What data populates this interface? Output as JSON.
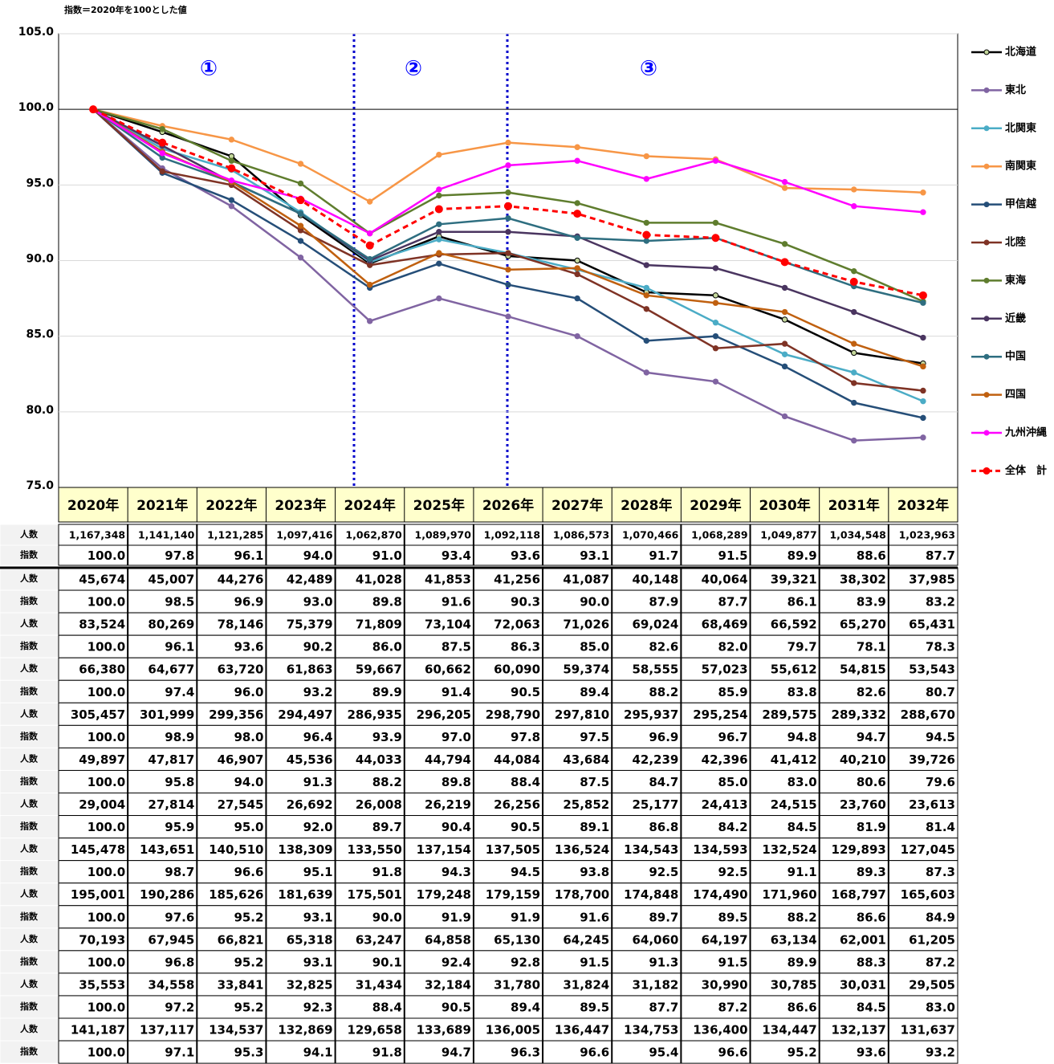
{
  "chart_data": {
    "type": "line",
    "subtitle": "指数＝2020年を100とした値",
    "categories": [
      "2020年",
      "2021年",
      "2022年",
      "2023年",
      "2024年",
      "2025年",
      "2026年",
      "2027年",
      "2028年",
      "2029年",
      "2030年",
      "2031年",
      "2032年"
    ],
    "ylim": [
      75,
      105
    ],
    "yticks": [
      {
        "value": 75,
        "label": "75.0"
      },
      {
        "value": 80,
        "label": "80.0"
      },
      {
        "value": 85,
        "label": "85.0"
      },
      {
        "value": 90,
        "label": "90.0"
      },
      {
        "value": 95,
        "label": "95.0"
      },
      {
        "value": 100,
        "label": "100.0"
      },
      {
        "value": 105,
        "label": "105.0"
      }
    ],
    "grid": true,
    "reference_line": 100,
    "legend": "right",
    "annotations": [
      "①",
      "②",
      "③"
    ],
    "series": [
      {
        "name": "北海道",
        "color": "#000000",
        "marker_color": "#c4d79b",
        "values": [
          100,
          98.5,
          96.9,
          93.0,
          89.8,
          91.6,
          90.3,
          90.0,
          87.9,
          87.7,
          86.1,
          83.9,
          83.2
        ],
        "value_labels": [
          "100.0",
          "98.5",
          "96.9",
          "93.0",
          "89.8",
          "91.6",
          "90.3",
          "90.0",
          "87.9",
          "87.7",
          "86.1",
          "83.9",
          "83.2"
        ]
      },
      {
        "name": "東北",
        "color": "#8064a2",
        "values": [
          100,
          96.1,
          93.6,
          90.2,
          86.0,
          87.5,
          86.3,
          85.0,
          82.6,
          82.0,
          79.7,
          78.1,
          78.3
        ],
        "value_labels": [
          "100.0",
          "96.1",
          "93.6",
          "90.2",
          "86.0",
          "87.5",
          "86.3",
          "85.0",
          "82.6",
          "82.0",
          "79.7",
          "78.1",
          "78.3"
        ]
      },
      {
        "name": "北関東",
        "color": "#4bacc6",
        "values": [
          100,
          97.4,
          96.0,
          93.2,
          89.9,
          91.4,
          90.5,
          89.4,
          88.2,
          85.9,
          83.8,
          82.6,
          80.7
        ],
        "value_labels": [
          "100.0",
          "97.4",
          "96.0",
          "93.2",
          "89.9",
          "91.4",
          "90.5",
          "89.4",
          "88.2",
          "85.9",
          "83.8",
          "82.6",
          "80.7"
        ]
      },
      {
        "name": "南関東",
        "color": "#f79646",
        "values": [
          100,
          98.9,
          98.0,
          96.4,
          93.9,
          97.0,
          97.8,
          97.5,
          96.9,
          96.7,
          94.8,
          94.7,
          94.5
        ],
        "value_labels": [
          "100.0",
          "98.9",
          "98.0",
          "96.4",
          "93.9",
          "97.0",
          "97.8",
          "97.5",
          "96.9",
          "96.7",
          "94.8",
          "94.7",
          "94.5"
        ]
      },
      {
        "name": "甲信越",
        "color": "#254e78",
        "values": [
          100,
          95.8,
          94.0,
          91.3,
          88.2,
          89.8,
          88.4,
          87.5,
          84.7,
          85.0,
          83.0,
          80.6,
          79.6
        ],
        "value_labels": [
          "100.0",
          "95.8",
          "94.0",
          "91.3",
          "88.2",
          "89.8",
          "88.4",
          "87.5",
          "84.7",
          "85.0",
          "83.0",
          "80.6",
          "79.6"
        ]
      },
      {
        "name": "北陸",
        "color": "#7f3325",
        "values": [
          100,
          95.9,
          95.0,
          92.0,
          89.7,
          90.4,
          90.5,
          89.1,
          86.8,
          84.2,
          84.5,
          81.9,
          81.4
        ],
        "value_labels": [
          "100.0",
          "95.9",
          "95.0",
          "92.0",
          "89.7",
          "90.4",
          "90.5",
          "89.1",
          "86.8",
          "84.2",
          "84.5",
          "81.9",
          "81.4"
        ]
      },
      {
        "name": "東海",
        "color": "#5f7d2e",
        "values": [
          100,
          98.7,
          96.6,
          95.1,
          91.8,
          94.3,
          94.5,
          93.8,
          92.5,
          92.5,
          91.1,
          89.3,
          87.3
        ],
        "value_labels": [
          "100.0",
          "98.7",
          "96.6",
          "95.1",
          "91.8",
          "94.3",
          "94.5",
          "93.8",
          "92.5",
          "92.5",
          "91.1",
          "89.3",
          "87.3"
        ]
      },
      {
        "name": "近畿",
        "color": "#4a3560",
        "values": [
          100,
          97.6,
          95.2,
          93.1,
          90.0,
          91.9,
          91.9,
          91.6,
          89.7,
          89.5,
          88.2,
          86.6,
          84.9
        ],
        "value_labels": [
          "100.0",
          "97.6",
          "95.2",
          "93.1",
          "90.0",
          "91.9",
          "91.9",
          "91.6",
          "89.7",
          "89.5",
          "88.2",
          "86.6",
          "84.9"
        ]
      },
      {
        "name": "中国",
        "color": "#2e6e80",
        "values": [
          100,
          96.8,
          95.2,
          93.1,
          90.1,
          92.4,
          92.8,
          91.5,
          91.3,
          91.5,
          89.9,
          88.3,
          87.2
        ],
        "value_labels": [
          "100.0",
          "96.8",
          "95.2",
          "93.1",
          "90.1",
          "92.4",
          "92.8",
          "91.5",
          "91.3",
          "91.5",
          "89.9",
          "88.3",
          "87.2"
        ]
      },
      {
        "name": "四国",
        "color": "#c0600f",
        "values": [
          100,
          97.2,
          95.2,
          92.3,
          88.4,
          90.5,
          89.4,
          89.5,
          87.7,
          87.2,
          86.6,
          84.5,
          83.0
        ],
        "value_labels": [
          "100.0",
          "97.2",
          "95.2",
          "92.3",
          "88.4",
          "90.5",
          "89.4",
          "89.5",
          "87.7",
          "87.2",
          "86.6",
          "84.5",
          "83.0"
        ]
      },
      {
        "name": "九州沖縄",
        "color": "#ff00ff",
        "values": [
          100,
          97.1,
          95.3,
          94.1,
          91.8,
          94.7,
          96.3,
          96.6,
          95.4,
          96.6,
          95.2,
          93.6,
          93.2
        ],
        "value_labels": [
          "100.0",
          "97.1",
          "95.3",
          "94.1",
          "91.8",
          "94.7",
          "96.3",
          "96.6",
          "95.4",
          "96.6",
          "95.2",
          "93.6",
          "93.2"
        ]
      },
      {
        "name": "全体　計",
        "color": "#ff0000",
        "dashed": true,
        "values": [
          100,
          97.8,
          96.1,
          94.0,
          91.0,
          93.4,
          93.6,
          93.1,
          91.7,
          91.5,
          89.9,
          88.6,
          87.7
        ],
        "value_labels": [
          "100.0",
          "97.8",
          "96.1",
          "94.0",
          "91.0",
          "93.4",
          "93.6",
          "93.1",
          "91.7",
          "91.5",
          "89.9",
          "88.6",
          "87.7"
        ]
      }
    ]
  },
  "table": {
    "row_labels": [
      "人数",
      "指数"
    ],
    "population": [
      [
        "1,167,348",
        "1,141,140",
        "1,121,285",
        "1,097,416",
        "1,062,870",
        "1,089,970",
        "1,092,118",
        "1,086,573",
        "1,070,466",
        "1,068,289",
        "1,049,877",
        "1,034,548",
        "1,023,963"
      ],
      [
        "45,674",
        "45,007",
        "44,276",
        "42,489",
        "41,028",
        "41,853",
        "41,256",
        "41,087",
        "40,148",
        "40,064",
        "39,321",
        "38,302",
        "37,985"
      ],
      [
        "83,524",
        "80,269",
        "78,146",
        "75,379",
        "71,809",
        "73,104",
        "72,063",
        "71,026",
        "69,024",
        "68,469",
        "66,592",
        "65,270",
        "65,431"
      ],
      [
        "66,380",
        "64,677",
        "63,720",
        "61,863",
        "59,667",
        "60,662",
        "60,090",
        "59,374",
        "58,555",
        "57,023",
        "55,612",
        "54,815",
        "53,543"
      ],
      [
        "305,457",
        "301,999",
        "299,356",
        "294,497",
        "286,935",
        "296,205",
        "298,790",
        "297,810",
        "295,937",
        "295,254",
        "289,575",
        "289,332",
        "288,670"
      ],
      [
        "49,897",
        "47,817",
        "46,907",
        "45,536",
        "44,033",
        "44,794",
        "44,084",
        "43,684",
        "42,239",
        "42,396",
        "41,412",
        "40,210",
        "39,726"
      ],
      [
        "29,004",
        "27,814",
        "27,545",
        "26,692",
        "26,008",
        "26,219",
        "26,256",
        "25,852",
        "25,177",
        "24,413",
        "24,515",
        "23,760",
        "23,613"
      ],
      [
        "145,478",
        "143,651",
        "140,510",
        "138,309",
        "133,550",
        "137,154",
        "137,505",
        "136,524",
        "134,543",
        "134,593",
        "132,524",
        "129,893",
        "127,045"
      ],
      [
        "195,001",
        "190,286",
        "185,626",
        "181,639",
        "175,501",
        "179,248",
        "179,159",
        "178,700",
        "174,848",
        "174,490",
        "171,960",
        "168,797",
        "165,603"
      ],
      [
        "70,193",
        "67,945",
        "66,821",
        "65,318",
        "63,247",
        "64,858",
        "65,130",
        "64,245",
        "64,060",
        "64,197",
        "63,134",
        "62,001",
        "61,205"
      ],
      [
        "35,553",
        "34,558",
        "33,841",
        "32,825",
        "31,434",
        "32,184",
        "31,780",
        "31,824",
        "31,182",
        "30,990",
        "30,785",
        "30,031",
        "29,505"
      ],
      [
        "141,187",
        "137,117",
        "134,537",
        "132,869",
        "129,658",
        "133,689",
        "136,005",
        "136,447",
        "134,753",
        "136,400",
        "134,447",
        "132,137",
        "131,637"
      ]
    ]
  }
}
